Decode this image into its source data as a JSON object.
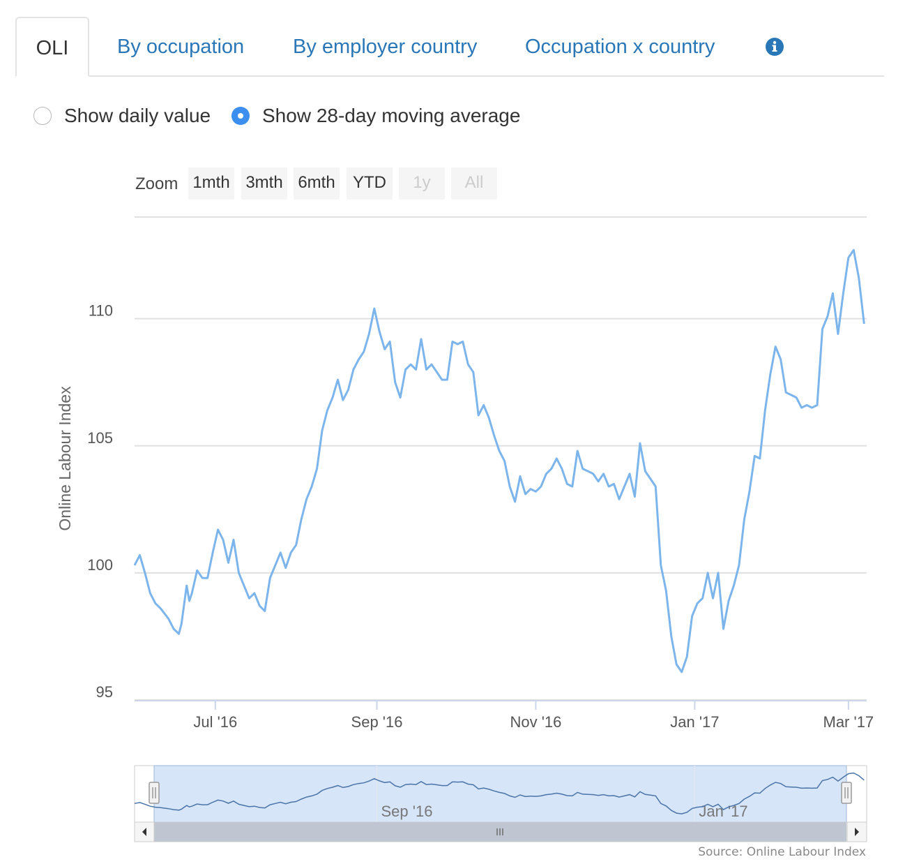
{
  "tabs": [
    {
      "label": "OLI",
      "active": true
    },
    {
      "label": "By occupation",
      "active": false
    },
    {
      "label": "By employer country",
      "active": false
    },
    {
      "label": "Occupation x country",
      "active": false
    }
  ],
  "info_icon": "info-circle-icon",
  "radio_options": [
    {
      "label": "Show daily value",
      "checked": false
    },
    {
      "label": "Show 28-day moving average",
      "checked": true
    }
  ],
  "zoom": {
    "label": "Zoom",
    "buttons": [
      {
        "label": "1mth",
        "enabled": true
      },
      {
        "label": "3mth",
        "enabled": true
      },
      {
        "label": "6mth",
        "enabled": true
      },
      {
        "label": "YTD",
        "enabled": true
      },
      {
        "label": "1y",
        "enabled": false
      },
      {
        "label": "All",
        "enabled": false
      }
    ]
  },
  "colors": {
    "line": "#7cb5ec",
    "tab_link": "#2a77b8",
    "radio_checked": "#3d8fef",
    "grid": "#e0e0e0",
    "navigator_fill": "#cfe1f7"
  },
  "source": "Source: Online Labour Index",
  "navigator": {
    "labels": [
      "Sep '16",
      "Jan '17"
    ]
  },
  "chart_data": {
    "type": "line",
    "title": "",
    "xlabel": "",
    "ylabel": "Online Labour Index",
    "x_tick_labels": [
      "Jul '16",
      "Sep '16",
      "Nov '16",
      "Jan '17",
      "Mar '17"
    ],
    "x_tick_dates": [
      "2016-07-01",
      "2016-09-01",
      "2016-11-01",
      "2017-01-01",
      "2017-03-01"
    ],
    "y_ticks": [
      95,
      100,
      105,
      110
    ],
    "ylim": [
      95,
      114
    ],
    "xlim": [
      "2016-05-31",
      "2017-03-08"
    ],
    "grid": true,
    "legend": "none",
    "series": [
      {
        "name": "",
        "x": [
          "2016-05-31",
          "2016-06-02",
          "2016-06-04",
          "2016-06-06",
          "2016-06-08",
          "2016-06-10",
          "2016-06-13",
          "2016-06-15",
          "2016-06-17",
          "2016-06-18",
          "2016-06-20",
          "2016-06-21",
          "2016-06-22",
          "2016-06-24",
          "2016-06-26",
          "2016-06-28",
          "2016-06-30",
          "2016-07-02",
          "2016-07-04",
          "2016-07-06",
          "2016-07-08",
          "2016-07-10",
          "2016-07-12",
          "2016-07-14",
          "2016-07-16",
          "2016-07-18",
          "2016-07-20",
          "2016-07-22",
          "2016-07-24",
          "2016-07-26",
          "2016-07-28",
          "2016-07-30",
          "2016-08-01",
          "2016-08-03",
          "2016-08-05",
          "2016-08-07",
          "2016-08-09",
          "2016-08-11",
          "2016-08-13",
          "2016-08-15",
          "2016-08-17",
          "2016-08-19",
          "2016-08-21",
          "2016-08-23",
          "2016-08-25",
          "2016-08-27",
          "2016-08-29",
          "2016-08-31",
          "2016-09-02",
          "2016-09-04",
          "2016-09-06",
          "2016-09-08",
          "2016-09-10",
          "2016-09-12",
          "2016-09-14",
          "2016-09-16",
          "2016-09-18",
          "2016-09-20",
          "2016-09-22",
          "2016-09-24",
          "2016-09-26",
          "2016-09-28",
          "2016-09-30",
          "2016-10-02",
          "2016-10-04",
          "2016-10-06",
          "2016-10-08",
          "2016-10-10",
          "2016-10-12",
          "2016-10-14",
          "2016-10-16",
          "2016-10-18",
          "2016-10-20",
          "2016-10-22",
          "2016-10-24",
          "2016-10-26",
          "2016-10-28",
          "2016-10-30",
          "2016-11-01",
          "2016-11-03",
          "2016-11-05",
          "2016-11-07",
          "2016-11-09",
          "2016-11-11",
          "2016-11-13",
          "2016-11-15",
          "2016-11-17",
          "2016-11-19",
          "2016-11-21",
          "2016-11-23",
          "2016-11-25",
          "2016-11-27",
          "2016-11-29",
          "2016-12-01",
          "2016-12-03",
          "2016-12-05",
          "2016-12-07",
          "2016-12-09",
          "2016-12-11",
          "2016-12-13",
          "2016-12-15",
          "2016-12-17",
          "2016-12-19",
          "2016-12-21",
          "2016-12-23",
          "2016-12-25",
          "2016-12-27",
          "2016-12-29",
          "2016-12-31",
          "2017-01-02",
          "2017-01-04",
          "2017-01-06",
          "2017-01-08",
          "2017-01-10",
          "2017-01-12",
          "2017-01-14",
          "2017-01-16",
          "2017-01-18",
          "2017-01-20",
          "2017-01-22",
          "2017-01-24",
          "2017-01-26",
          "2017-01-28",
          "2017-01-30",
          "2017-02-01",
          "2017-02-03",
          "2017-02-05",
          "2017-02-07",
          "2017-02-09",
          "2017-02-11",
          "2017-02-13",
          "2017-02-15",
          "2017-02-17",
          "2017-02-19",
          "2017-02-21",
          "2017-02-23",
          "2017-02-25",
          "2017-02-27",
          "2017-03-01",
          "2017-03-03",
          "2017-03-05",
          "2017-03-07"
        ],
        "values": [
          100.3,
          100.7,
          100.0,
          99.2,
          98.8,
          98.6,
          98.2,
          97.8,
          97.6,
          98.0,
          99.5,
          98.9,
          99.2,
          100.1,
          99.8,
          99.8,
          100.8,
          101.7,
          101.3,
          100.4,
          101.3,
          100.0,
          99.5,
          99.0,
          99.2,
          98.7,
          98.5,
          99.8,
          100.3,
          100.8,
          100.2,
          100.8,
          101.1,
          102.1,
          102.9,
          103.4,
          104.1,
          105.6,
          106.4,
          106.9,
          107.6,
          106.8,
          107.2,
          108.0,
          108.4,
          108.7,
          109.4,
          110.4,
          109.5,
          108.8,
          109.1,
          107.5,
          106.9,
          108.0,
          108.2,
          108.0,
          109.2,
          108.0,
          108.2,
          107.9,
          107.6,
          107.6,
          109.1,
          109.0,
          109.1,
          108.2,
          107.9,
          106.2,
          106.6,
          106.1,
          105.4,
          104.8,
          104.4,
          103.4,
          102.8,
          103.8,
          103.1,
          103.3,
          103.2,
          103.4,
          103.9,
          104.1,
          104.5,
          104.1,
          103.5,
          103.4,
          104.8,
          104.1,
          104.0,
          103.9,
          103.6,
          103.9,
          103.4,
          103.5,
          102.9,
          103.4,
          103.9,
          103.0,
          105.1,
          104.0,
          103.7,
          103.4,
          100.3,
          99.3,
          97.5,
          96.4,
          96.1,
          96.7,
          98.3,
          98.8,
          99.0,
          100.0,
          99.0,
          100.0,
          97.8,
          98.9,
          99.5,
          100.3,
          102.1,
          103.2,
          104.6,
          104.5,
          106.4,
          107.8,
          108.9,
          108.4,
          107.1,
          107.0,
          106.9,
          106.5,
          106.6,
          106.5,
          106.6,
          109.6,
          110.1,
          111.0,
          109.4,
          111.0,
          112.4,
          112.7,
          111.6,
          109.8
        ]
      }
    ]
  }
}
